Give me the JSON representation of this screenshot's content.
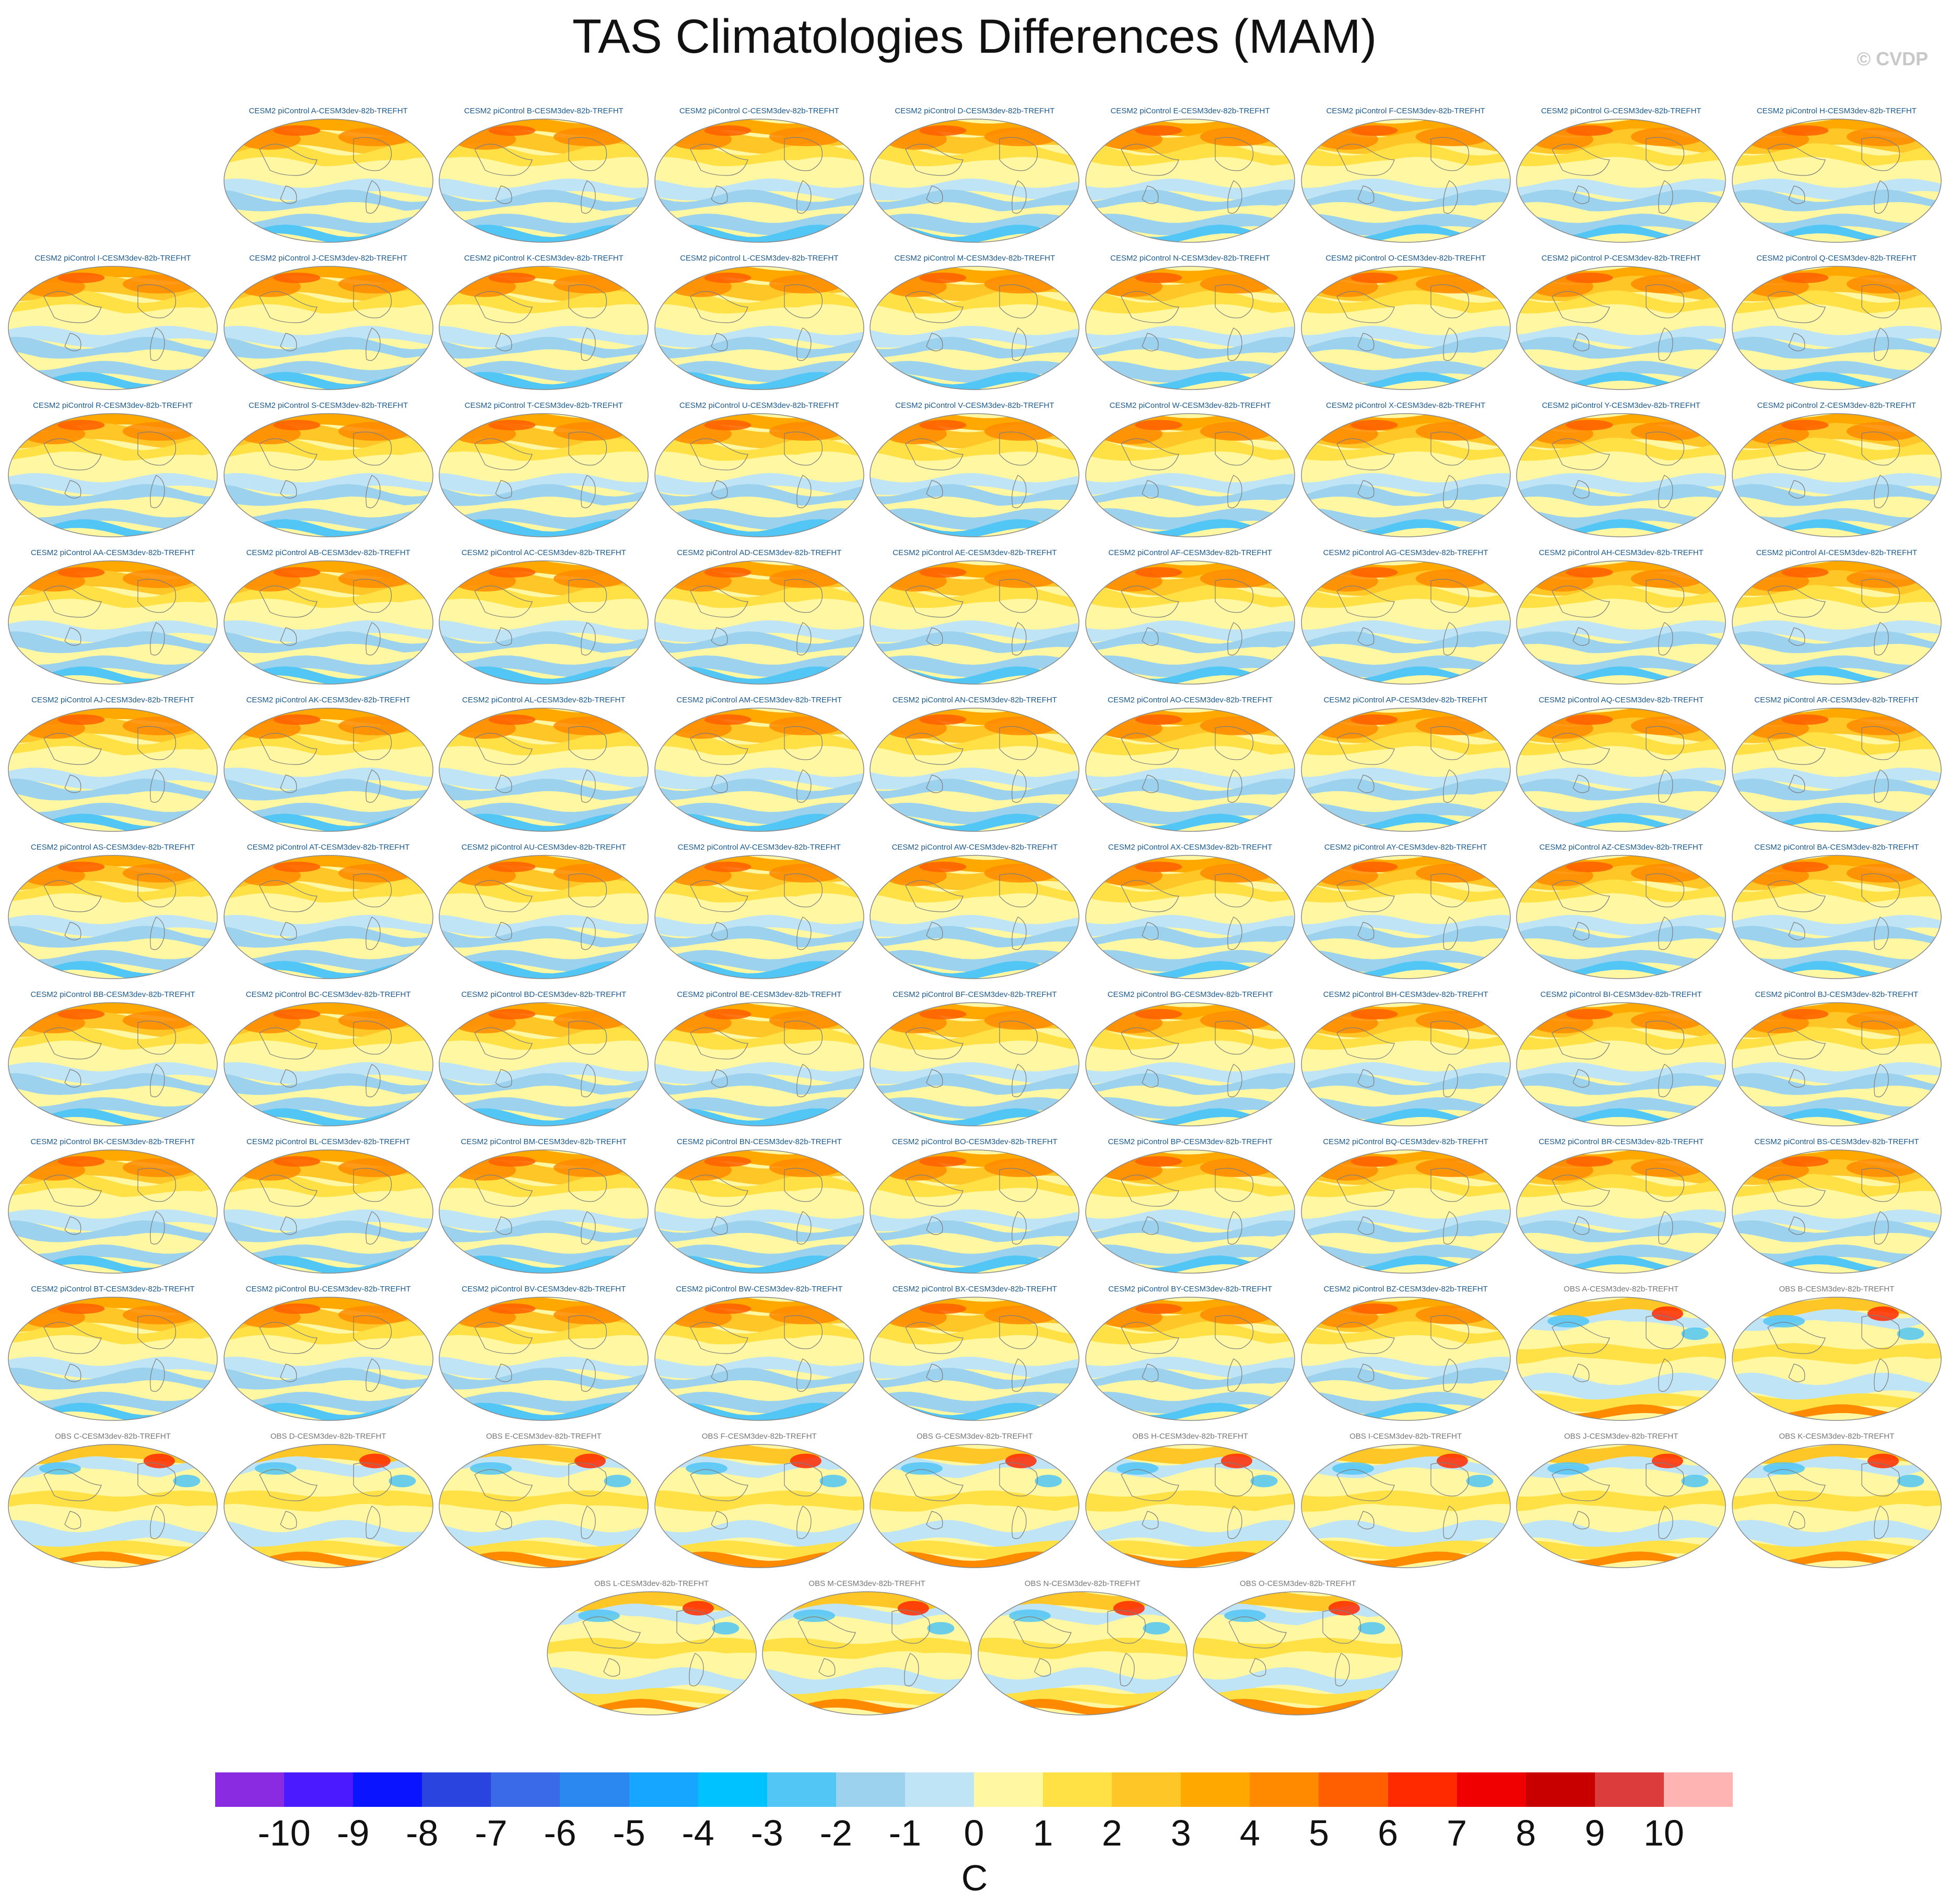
{
  "title": "TAS Climatologies Differences (MAM)",
  "credit": "© CVDP",
  "chart_data": {
    "type": "heatmap",
    "title": "TAS Climatologies Differences (MAM)",
    "variable": "TAS",
    "season": "MAM",
    "units": "C",
    "colorbar": {
      "labels": [
        "-10",
        "-9",
        "-8",
        "-7",
        "-6",
        "-5",
        "-4",
        "-3",
        "-2",
        "-1",
        "0",
        "1",
        "2",
        "3",
        "4",
        "5",
        "6",
        "7",
        "8",
        "9",
        "10"
      ],
      "colors": [
        "#8a2be2",
        "#4b1aff",
        "#0a14ff",
        "#2a44e0",
        "#3a6ae8",
        "#2a88f0",
        "#16a6ff",
        "#00c2ff",
        "#52c6f4",
        "#9cd2ee",
        "#bfe4f5",
        "#fff7a2",
        "#ffe145",
        "#ffc628",
        "#ffa900",
        "#ff8a00",
        "#ff5f00",
        "#ff2a00",
        "#f00000",
        "#c80000",
        "#dc3c3c",
        "#ffb4b4"
      ]
    },
    "panels": [
      {
        "label": "CESM2 piControl A-CESM3dev-82b-TREFHT",
        "kind": "cesm"
      },
      {
        "label": "CESM2 piControl B-CESM3dev-82b-TREFHT",
        "kind": "cesm"
      },
      {
        "label": "CESM2 piControl C-CESM3dev-82b-TREFHT",
        "kind": "cesm"
      },
      {
        "label": "CESM2 piControl D-CESM3dev-82b-TREFHT",
        "kind": "cesm"
      },
      {
        "label": "CESM2 piControl E-CESM3dev-82b-TREFHT",
        "kind": "cesm"
      },
      {
        "label": "CESM2 piControl F-CESM3dev-82b-TREFHT",
        "kind": "cesm"
      },
      {
        "label": "CESM2 piControl G-CESM3dev-82b-TREFHT",
        "kind": "cesm"
      },
      {
        "label": "CESM2 piControl H-CESM3dev-82b-TREFHT",
        "kind": "cesm"
      },
      {
        "label": "CESM2 piControl I-CESM3dev-82b-TREFHT",
        "kind": "cesm"
      },
      {
        "label": "CESM2 piControl J-CESM3dev-82b-TREFHT",
        "kind": "cesm"
      },
      {
        "label": "CESM2 piControl K-CESM3dev-82b-TREFHT",
        "kind": "cesm"
      },
      {
        "label": "CESM2 piControl L-CESM3dev-82b-TREFHT",
        "kind": "cesm"
      },
      {
        "label": "CESM2 piControl M-CESM3dev-82b-TREFHT",
        "kind": "cesm"
      },
      {
        "label": "CESM2 piControl N-CESM3dev-82b-TREFHT",
        "kind": "cesm"
      },
      {
        "label": "CESM2 piControl O-CESM3dev-82b-TREFHT",
        "kind": "cesm"
      },
      {
        "label": "CESM2 piControl P-CESM3dev-82b-TREFHT",
        "kind": "cesm"
      },
      {
        "label": "CESM2 piControl Q-CESM3dev-82b-TREFHT",
        "kind": "cesm"
      },
      {
        "label": "CESM2 piControl R-CESM3dev-82b-TREFHT",
        "kind": "cesm"
      },
      {
        "label": "CESM2 piControl S-CESM3dev-82b-TREFHT",
        "kind": "cesm"
      },
      {
        "label": "CESM2 piControl T-CESM3dev-82b-TREFHT",
        "kind": "cesm"
      },
      {
        "label": "CESM2 piControl U-CESM3dev-82b-TREFHT",
        "kind": "cesm"
      },
      {
        "label": "CESM2 piControl V-CESM3dev-82b-TREFHT",
        "kind": "cesm"
      },
      {
        "label": "CESM2 piControl W-CESM3dev-82b-TREFHT",
        "kind": "cesm"
      },
      {
        "label": "CESM2 piControl X-CESM3dev-82b-TREFHT",
        "kind": "cesm"
      },
      {
        "label": "CESM2 piControl Y-CESM3dev-82b-TREFHT",
        "kind": "cesm"
      },
      {
        "label": "CESM2 piControl Z-CESM3dev-82b-TREFHT",
        "kind": "cesm"
      },
      {
        "label": "CESM2 piControl AA-CESM3dev-82b-TREFHT",
        "kind": "cesm"
      },
      {
        "label": "CESM2 piControl AB-CESM3dev-82b-TREFHT",
        "kind": "cesm"
      },
      {
        "label": "CESM2 piControl AC-CESM3dev-82b-TREFHT",
        "kind": "cesm"
      },
      {
        "label": "CESM2 piControl AD-CESM3dev-82b-TREFHT",
        "kind": "cesm"
      },
      {
        "label": "CESM2 piControl AE-CESM3dev-82b-TREFHT",
        "kind": "cesm"
      },
      {
        "label": "CESM2 piControl AF-CESM3dev-82b-TREFHT",
        "kind": "cesm"
      },
      {
        "label": "CESM2 piControl AG-CESM3dev-82b-TREFHT",
        "kind": "cesm"
      },
      {
        "label": "CESM2 piControl AH-CESM3dev-82b-TREFHT",
        "kind": "cesm"
      },
      {
        "label": "CESM2 piControl AI-CESM3dev-82b-TREFHT",
        "kind": "cesm"
      },
      {
        "label": "CESM2 piControl AJ-CESM3dev-82b-TREFHT",
        "kind": "cesm"
      },
      {
        "label": "CESM2 piControl AK-CESM3dev-82b-TREFHT",
        "kind": "cesm"
      },
      {
        "label": "CESM2 piControl AL-CESM3dev-82b-TREFHT",
        "kind": "cesm"
      },
      {
        "label": "CESM2 piControl AM-CESM3dev-82b-TREFHT",
        "kind": "cesm"
      },
      {
        "label": "CESM2 piControl AN-CESM3dev-82b-TREFHT",
        "kind": "cesm"
      },
      {
        "label": "CESM2 piControl AO-CESM3dev-82b-TREFHT",
        "kind": "cesm"
      },
      {
        "label": "CESM2 piControl AP-CESM3dev-82b-TREFHT",
        "kind": "cesm"
      },
      {
        "label": "CESM2 piControl AQ-CESM3dev-82b-TREFHT",
        "kind": "cesm"
      },
      {
        "label": "CESM2 piControl AR-CESM3dev-82b-TREFHT",
        "kind": "cesm"
      },
      {
        "label": "CESM2 piControl AS-CESM3dev-82b-TREFHT",
        "kind": "cesm"
      },
      {
        "label": "CESM2 piControl AT-CESM3dev-82b-TREFHT",
        "kind": "cesm"
      },
      {
        "label": "CESM2 piControl AU-CESM3dev-82b-TREFHT",
        "kind": "cesm"
      },
      {
        "label": "CESM2 piControl AV-CESM3dev-82b-TREFHT",
        "kind": "cesm"
      },
      {
        "label": "CESM2 piControl AW-CESM3dev-82b-TREFHT",
        "kind": "cesm"
      },
      {
        "label": "CESM2 piControl AX-CESM3dev-82b-TREFHT",
        "kind": "cesm"
      },
      {
        "label": "CESM2 piControl AY-CESM3dev-82b-TREFHT",
        "kind": "cesm"
      },
      {
        "label": "CESM2 piControl AZ-CESM3dev-82b-TREFHT",
        "kind": "cesm"
      },
      {
        "label": "CESM2 piControl BA-CESM3dev-82b-TREFHT",
        "kind": "cesm"
      },
      {
        "label": "CESM2 piControl BB-CESM3dev-82b-TREFHT",
        "kind": "cesm"
      },
      {
        "label": "CESM2 piControl BC-CESM3dev-82b-TREFHT",
        "kind": "cesm"
      },
      {
        "label": "CESM2 piControl BD-CESM3dev-82b-TREFHT",
        "kind": "cesm"
      },
      {
        "label": "CESM2 piControl BE-CESM3dev-82b-TREFHT",
        "kind": "cesm"
      },
      {
        "label": "CESM2 piControl BF-CESM3dev-82b-TREFHT",
        "kind": "cesm"
      },
      {
        "label": "CESM2 piControl BG-CESM3dev-82b-TREFHT",
        "kind": "cesm"
      },
      {
        "label": "CESM2 piControl BH-CESM3dev-82b-TREFHT",
        "kind": "cesm"
      },
      {
        "label": "CESM2 piControl BI-CESM3dev-82b-TREFHT",
        "kind": "cesm"
      },
      {
        "label": "CESM2 piControl BJ-CESM3dev-82b-TREFHT",
        "kind": "cesm"
      },
      {
        "label": "CESM2 piControl BK-CESM3dev-82b-TREFHT",
        "kind": "cesm"
      },
      {
        "label": "CESM2 piControl BL-CESM3dev-82b-TREFHT",
        "kind": "cesm"
      },
      {
        "label": "CESM2 piControl BM-CESM3dev-82b-TREFHT",
        "kind": "cesm"
      },
      {
        "label": "CESM2 piControl BN-CESM3dev-82b-TREFHT",
        "kind": "cesm"
      },
      {
        "label": "CESM2 piControl BO-CESM3dev-82b-TREFHT",
        "kind": "cesm"
      },
      {
        "label": "CESM2 piControl BP-CESM3dev-82b-TREFHT",
        "kind": "cesm"
      },
      {
        "label": "CESM2 piControl BQ-CESM3dev-82b-TREFHT",
        "kind": "cesm"
      },
      {
        "label": "CESM2 piControl BR-CESM3dev-82b-TREFHT",
        "kind": "cesm"
      },
      {
        "label": "CESM2 piControl BS-CESM3dev-82b-TREFHT",
        "kind": "cesm"
      },
      {
        "label": "CESM2 piControl BT-CESM3dev-82b-TREFHT",
        "kind": "cesm"
      },
      {
        "label": "CESM2 piControl BU-CESM3dev-82b-TREFHT",
        "kind": "cesm"
      },
      {
        "label": "CESM2 piControl BV-CESM3dev-82b-TREFHT",
        "kind": "cesm"
      },
      {
        "label": "CESM2 piControl BW-CESM3dev-82b-TREFHT",
        "kind": "cesm"
      },
      {
        "label": "CESM2 piControl BX-CESM3dev-82b-TREFHT",
        "kind": "cesm"
      },
      {
        "label": "CESM2 piControl BY-CESM3dev-82b-TREFHT",
        "kind": "cesm"
      },
      {
        "label": "CESM2 piControl BZ-CESM3dev-82b-TREFHT",
        "kind": "cesm"
      },
      {
        "label": "OBS A-CESM3dev-82b-TREFHT",
        "kind": "obs"
      },
      {
        "label": "OBS B-CESM3dev-82b-TREFHT",
        "kind": "obs"
      },
      {
        "label": "OBS C-CESM3dev-82b-TREFHT",
        "kind": "obs"
      },
      {
        "label": "OBS D-CESM3dev-82b-TREFHT",
        "kind": "obs"
      },
      {
        "label": "OBS E-CESM3dev-82b-TREFHT",
        "kind": "obs"
      },
      {
        "label": "OBS F-CESM3dev-82b-TREFHT",
        "kind": "obs"
      },
      {
        "label": "OBS G-CESM3dev-82b-TREFHT",
        "kind": "obs"
      },
      {
        "label": "OBS H-CESM3dev-82b-TREFHT",
        "kind": "obs"
      },
      {
        "label": "OBS I-CESM3dev-82b-TREFHT",
        "kind": "obs"
      },
      {
        "label": "OBS J-CESM3dev-82b-TREFHT",
        "kind": "obs"
      },
      {
        "label": "OBS K-CESM3dev-82b-TREFHT",
        "kind": "obs"
      },
      {
        "label": "OBS L-CESM3dev-82b-TREFHT",
        "kind": "obs"
      },
      {
        "label": "OBS M-CESM3dev-82b-TREFHT",
        "kind": "obs"
      },
      {
        "label": "OBS N-CESM3dev-82b-TREFHT",
        "kind": "obs"
      },
      {
        "label": "OBS O-CESM3dev-82b-TREFHT",
        "kind": "obs"
      }
    ],
    "label_colors": {
      "cesm": "#1c5a8e",
      "obs": "#777777"
    }
  }
}
